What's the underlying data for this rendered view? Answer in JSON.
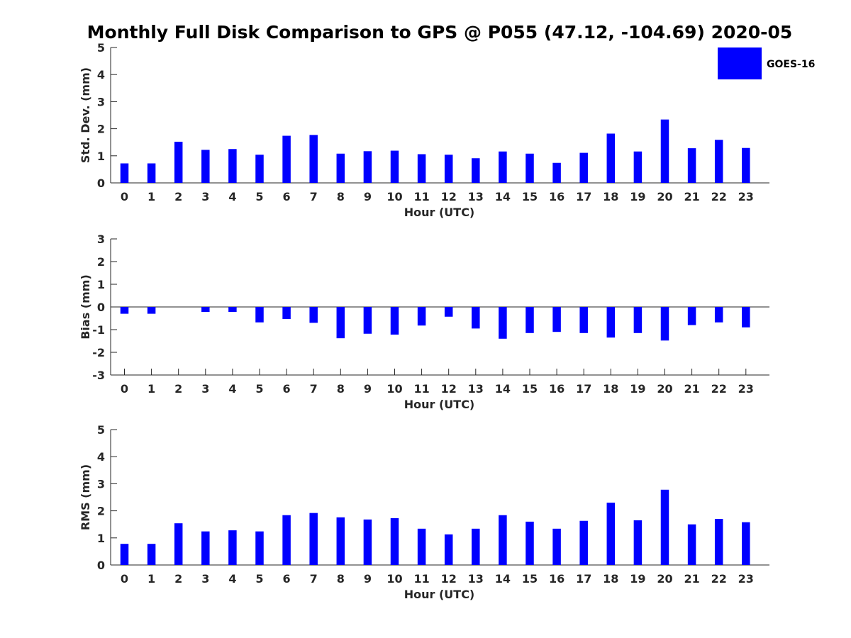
{
  "chart_data": {
    "type": "bar",
    "title": "Monthly Full Disk Comparison to GPS @ P055 (47.12, -104.69) 2020-05",
    "series_name": "GOES-16",
    "bar_color": "#0000ff",
    "legend_position": "top-right",
    "xlabel": "Hour (UTC)",
    "categories": [
      "0",
      "1",
      "2",
      "3",
      "4",
      "5",
      "6",
      "7",
      "8",
      "9",
      "10",
      "11",
      "12",
      "13",
      "14",
      "15",
      "16",
      "17",
      "18",
      "19",
      "20",
      "21",
      "22",
      "23"
    ],
    "panels": [
      {
        "ylabel": "Std. Dev. (mm)",
        "ylim": [
          0,
          5
        ],
        "yticks": [
          0,
          1,
          2,
          3,
          4,
          5
        ],
        "values": [
          0.72,
          0.72,
          1.52,
          1.22,
          1.25,
          1.04,
          1.74,
          1.77,
          1.08,
          1.17,
          1.19,
          1.06,
          1.04,
          0.91,
          1.16,
          1.08,
          0.74,
          1.11,
          1.82,
          1.16,
          2.34,
          1.28,
          1.59,
          1.29
        ]
      },
      {
        "ylabel": "Bias (mm)",
        "ylim": [
          -3,
          3
        ],
        "yticks": [
          -3,
          -2,
          -1,
          0,
          1,
          2,
          3
        ],
        "values": [
          -0.3,
          -0.3,
          0.0,
          -0.22,
          -0.22,
          -0.68,
          -0.53,
          -0.7,
          -1.38,
          -1.18,
          -1.22,
          -0.82,
          -0.43,
          -0.95,
          -1.4,
          -1.15,
          -1.1,
          -1.15,
          -1.35,
          -1.15,
          -1.48,
          -0.8,
          -0.68,
          -0.9
        ]
      },
      {
        "ylabel": "RMS (mm)",
        "ylim": [
          0,
          5
        ],
        "yticks": [
          0,
          1,
          2,
          3,
          4,
          5
        ],
        "values": [
          0.78,
          0.78,
          1.54,
          1.24,
          1.28,
          1.24,
          1.84,
          1.92,
          1.76,
          1.68,
          1.73,
          1.34,
          1.13,
          1.34,
          1.84,
          1.6,
          1.34,
          1.63,
          2.3,
          1.65,
          2.78,
          1.5,
          1.7,
          1.58
        ]
      }
    ]
  }
}
